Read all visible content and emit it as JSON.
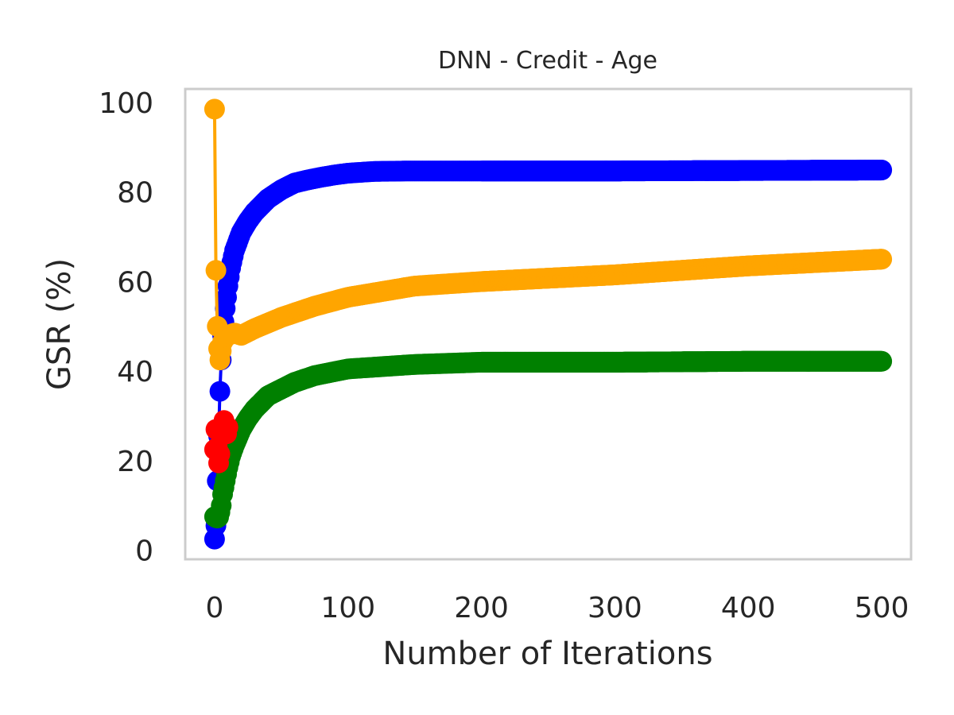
{
  "chart_data": {
    "type": "line",
    "title": "DNN - Credit - Age",
    "xlabel": "Number of Iterations",
    "ylabel": "GSR (%)",
    "xlim": [
      -22,
      522
    ],
    "ylim": [
      -2,
      103
    ],
    "xticks": [
      0,
      100,
      200,
      300,
      400,
      500
    ],
    "yticks": [
      0,
      20,
      40,
      60,
      80,
      100
    ],
    "grid": false,
    "legend": "none",
    "marker": "circle",
    "series": [
      {
        "color": "#0000ff",
        "x": [
          0,
          1,
          2,
          3,
          4,
          5,
          6,
          8,
          10,
          12,
          15,
          20,
          25,
          30,
          40,
          50,
          60,
          70,
          80,
          90,
          100,
          120,
          150,
          200,
          300,
          400,
          500
        ],
        "y": [
          2.5,
          5.5,
          15.5,
          25.5,
          35.5,
          42.5,
          48,
          54,
          59,
          63,
          67,
          71,
          73.5,
          75.5,
          78.5,
          80.5,
          82,
          82.7,
          83.3,
          83.8,
          84.2,
          84.6,
          84.7,
          84.7,
          84.7,
          84.8,
          84.9
        ]
      },
      {
        "color": "#ffa500",
        "x": [
          0,
          1,
          2,
          3,
          4,
          5,
          6,
          8,
          10,
          15,
          20,
          30,
          50,
          75,
          100,
          150,
          200,
          300,
          400,
          500
        ],
        "y": [
          98.5,
          62.5,
          50,
          45,
          42.5,
          44.5,
          46.5,
          47.5,
          48,
          48.5,
          48,
          49.5,
          52,
          54.5,
          56.5,
          59,
          60,
          61.5,
          63.5,
          65
        ]
      },
      {
        "color": "#008000",
        "x": [
          0,
          1,
          2,
          3,
          4,
          5,
          6,
          8,
          10,
          12,
          15,
          20,
          25,
          30,
          40,
          50,
          60,
          75,
          100,
          150,
          200,
          300,
          400,
          500
        ],
        "y": [
          7.5,
          7.3,
          7.2,
          7.4,
          8.5,
          10,
          12.5,
          15.5,
          18.5,
          21,
          23.5,
          27,
          29.5,
          31.5,
          34.5,
          36,
          37.5,
          39,
          40.5,
          41.5,
          42,
          42,
          42.2,
          42.2
        ]
      },
      {
        "color": "#ff0000",
        "x": [
          0,
          1,
          2,
          3,
          4,
          5,
          6,
          7,
          8,
          9,
          10
        ],
        "y": [
          22.5,
          27,
          23,
          19.5,
          21.5,
          25.5,
          27.5,
          29,
          27.5,
          26,
          27.5
        ]
      }
    ]
  }
}
